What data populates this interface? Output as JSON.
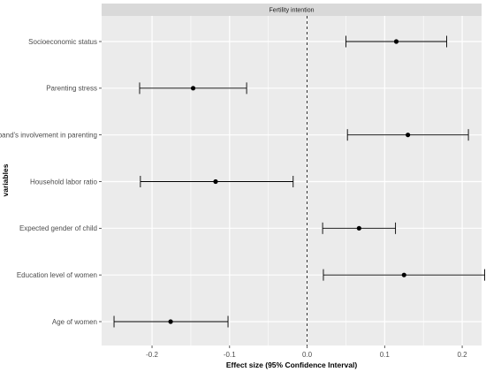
{
  "chart_data": {
    "type": "forest",
    "title": "Fertility intention",
    "xlabel": "Effect size (95% Confidence Interval)",
    "ylabel": "variables",
    "xlim": [
      -0.265,
      0.225
    ],
    "xticks": [
      -0.2,
      -0.1,
      0.0,
      0.1,
      0.2
    ],
    "xtick_labels": [
      "-0.2",
      "-0.1",
      "0.0",
      "0.1",
      "0.2"
    ],
    "reference_line": 0,
    "grid": true,
    "rows": [
      {
        "label": "Socioeconomic status",
        "estimate": 0.115,
        "lower": 0.05,
        "upper": 0.18
      },
      {
        "label": "Parenting stress",
        "estimate": -0.147,
        "lower": -0.216,
        "upper": -0.078
      },
      {
        "label": "Husband's involvement in parenting",
        "estimate": 0.13,
        "lower": 0.052,
        "upper": 0.208
      },
      {
        "label": "Household labor ratio",
        "estimate": -0.118,
        "lower": -0.215,
        "upper": -0.018
      },
      {
        "label": "Expected gender of child",
        "estimate": 0.067,
        "lower": 0.02,
        "upper": 0.114
      },
      {
        "label": "Education level of women",
        "estimate": 0.125,
        "lower": 0.021,
        "upper": 0.229
      },
      {
        "label": "Age of women",
        "estimate": -0.176,
        "lower": -0.249,
        "upper": -0.102
      }
    ],
    "colors": {
      "panel_bg": "#ebebeb",
      "strip_bg": "#d9d9d9",
      "grid": "#ffffff",
      "marks": "#000000"
    }
  }
}
